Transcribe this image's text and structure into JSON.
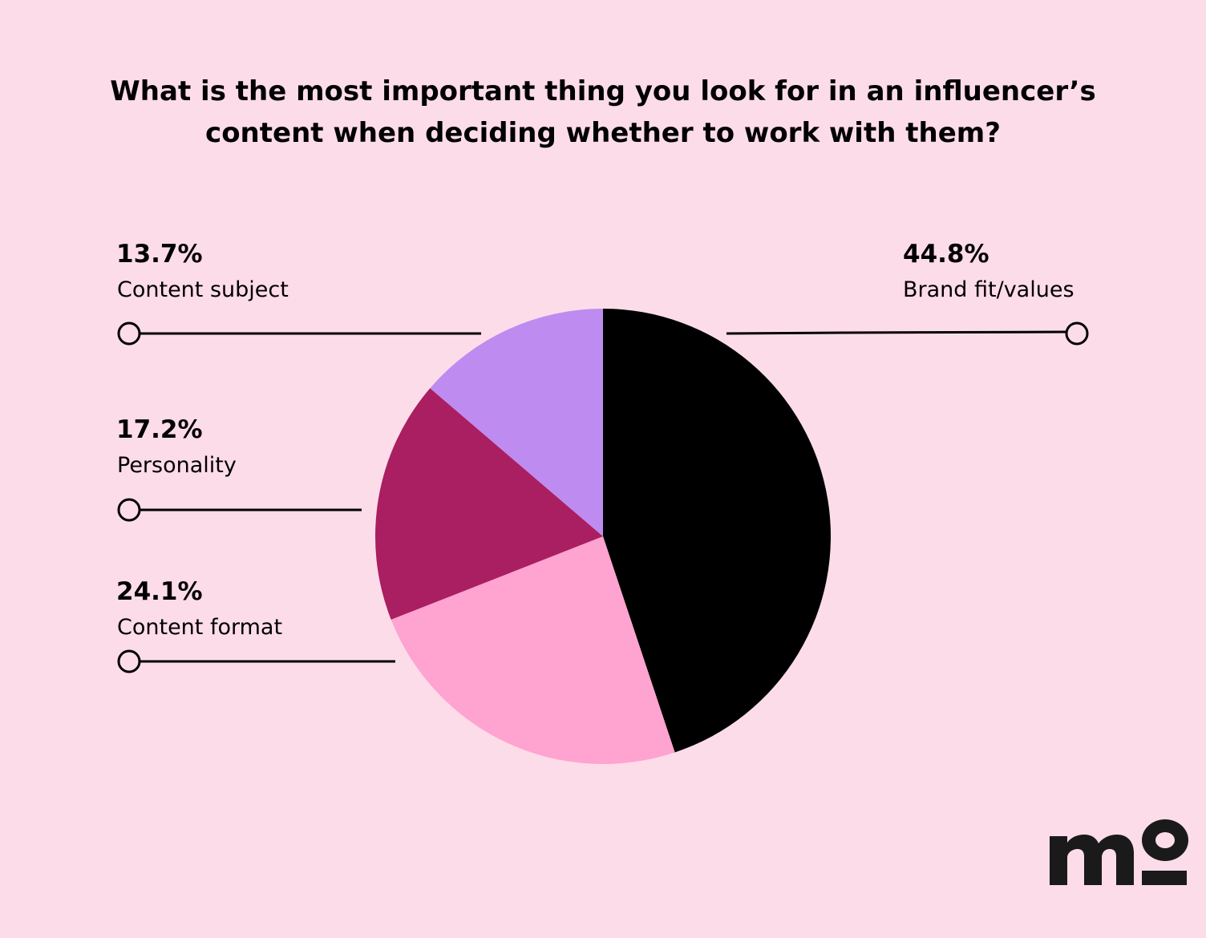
{
  "chart_data": {
    "type": "pie",
    "title_lines": [
      "What is the most important thing you look for in an influencer’s",
      "content when deciding whether to work with them?"
    ],
    "slices": [
      {
        "label": "Brand fit/values",
        "value": 44.8,
        "display": "44.8%",
        "color": "#000000",
        "legend_side": "right"
      },
      {
        "label": "Content format",
        "value": 24.1,
        "display": "24.1%",
        "color": "#FFA3D0",
        "legend_side": "left"
      },
      {
        "label": "Personality",
        "value": 17.2,
        "display": "17.2%",
        "color": "#AA1E62",
        "legend_side": "left"
      },
      {
        "label": "Content subject",
        "value": 13.7,
        "display": "13.7%",
        "color": "#BE8BF0",
        "legend_side": "left"
      }
    ],
    "start": "top",
    "direction": "clockwise"
  },
  "brand": {
    "logo_name": "mo-logo",
    "color": "#1A1A1A"
  },
  "background": "#FDDCEA"
}
